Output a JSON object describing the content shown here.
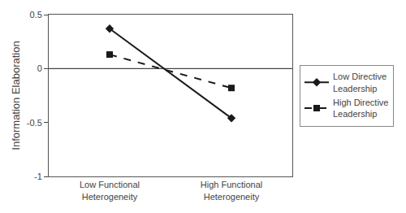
{
  "chart_data": {
    "type": "line",
    "categories": [
      "Low Functional\nHeterogeneity",
      "High Functional\nHeterogeneity"
    ],
    "series": [
      {
        "name": "Low Directive\nLeadership",
        "color": "#1a1a1a",
        "marker": "diamond",
        "line_style": "solid",
        "values": [
          0.37,
          -0.46
        ]
      },
      {
        "name": "High Directive\nLeadership",
        "color": "#1a1a1a",
        "marker": "square",
        "line_style": "dashed",
        "values": [
          0.13,
          -0.18
        ]
      }
    ],
    "y_label": "Information Elaboration",
    "ylim": [
      -1,
      0.5
    ],
    "yticks": [
      -1,
      -0.5,
      0,
      0.5
    ],
    "hline": 0,
    "grid": false,
    "legend": "right"
  }
}
